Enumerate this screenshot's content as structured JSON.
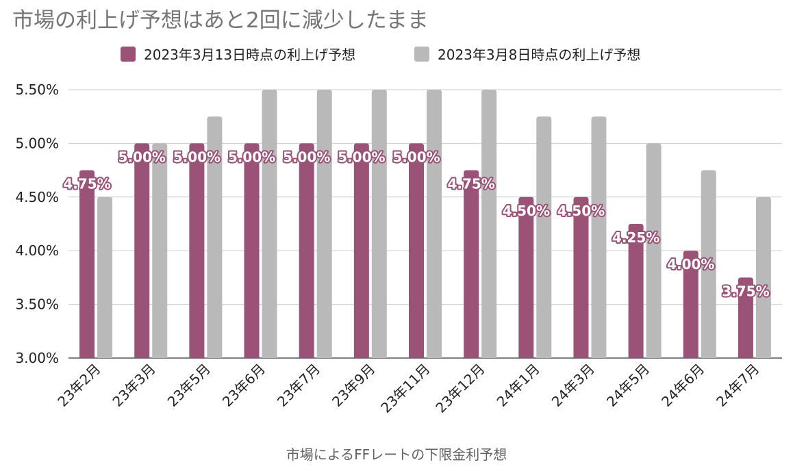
{
  "chart_data": {
    "type": "bar",
    "title": "市場の利上げ予想はあと2回に減少したまま",
    "xlabel": "市場によるFFレートの下限金利予想",
    "ylabel": "",
    "ylim": [
      3.0,
      5.5
    ],
    "yticks": [
      "3.00%",
      "3.50%",
      "4.00%",
      "4.50%",
      "5.00%",
      "5.50%"
    ],
    "ytick_values": [
      3.0,
      3.5,
      4.0,
      4.5,
      5.0,
      5.5
    ],
    "grid": true,
    "legend_position": "top",
    "categories": [
      "23年2月",
      "23年3月",
      "23年5月",
      "23年6月",
      "23年7月",
      "23年9月",
      "23年11月",
      "23年12月",
      "24年1月",
      "24年3月",
      "24年5月",
      "24年6月",
      "24年7月"
    ],
    "series": [
      {
        "name": "2023年3月13日時点の利上げ予想",
        "color": "#9b5277",
        "values": [
          4.75,
          5.0,
          5.0,
          5.0,
          5.0,
          5.0,
          5.0,
          4.75,
          4.5,
          4.5,
          4.25,
          4.0,
          3.75
        ],
        "labels": [
          "4.75%",
          "5.00%",
          "5.00%",
          "5.00%",
          "5.00%",
          "5.00%",
          "5.00%",
          "4.75%",
          "4.50%",
          "4.50%",
          "4.25%",
          "4.00%",
          "3.75%"
        ]
      },
      {
        "name": "2023年3月8日時点の利上げ予想",
        "color": "#b9b9b9",
        "values": [
          4.5,
          5.0,
          5.25,
          5.5,
          5.5,
          5.5,
          5.5,
          5.5,
          5.25,
          5.25,
          5.0,
          4.75,
          4.5
        ]
      }
    ]
  }
}
